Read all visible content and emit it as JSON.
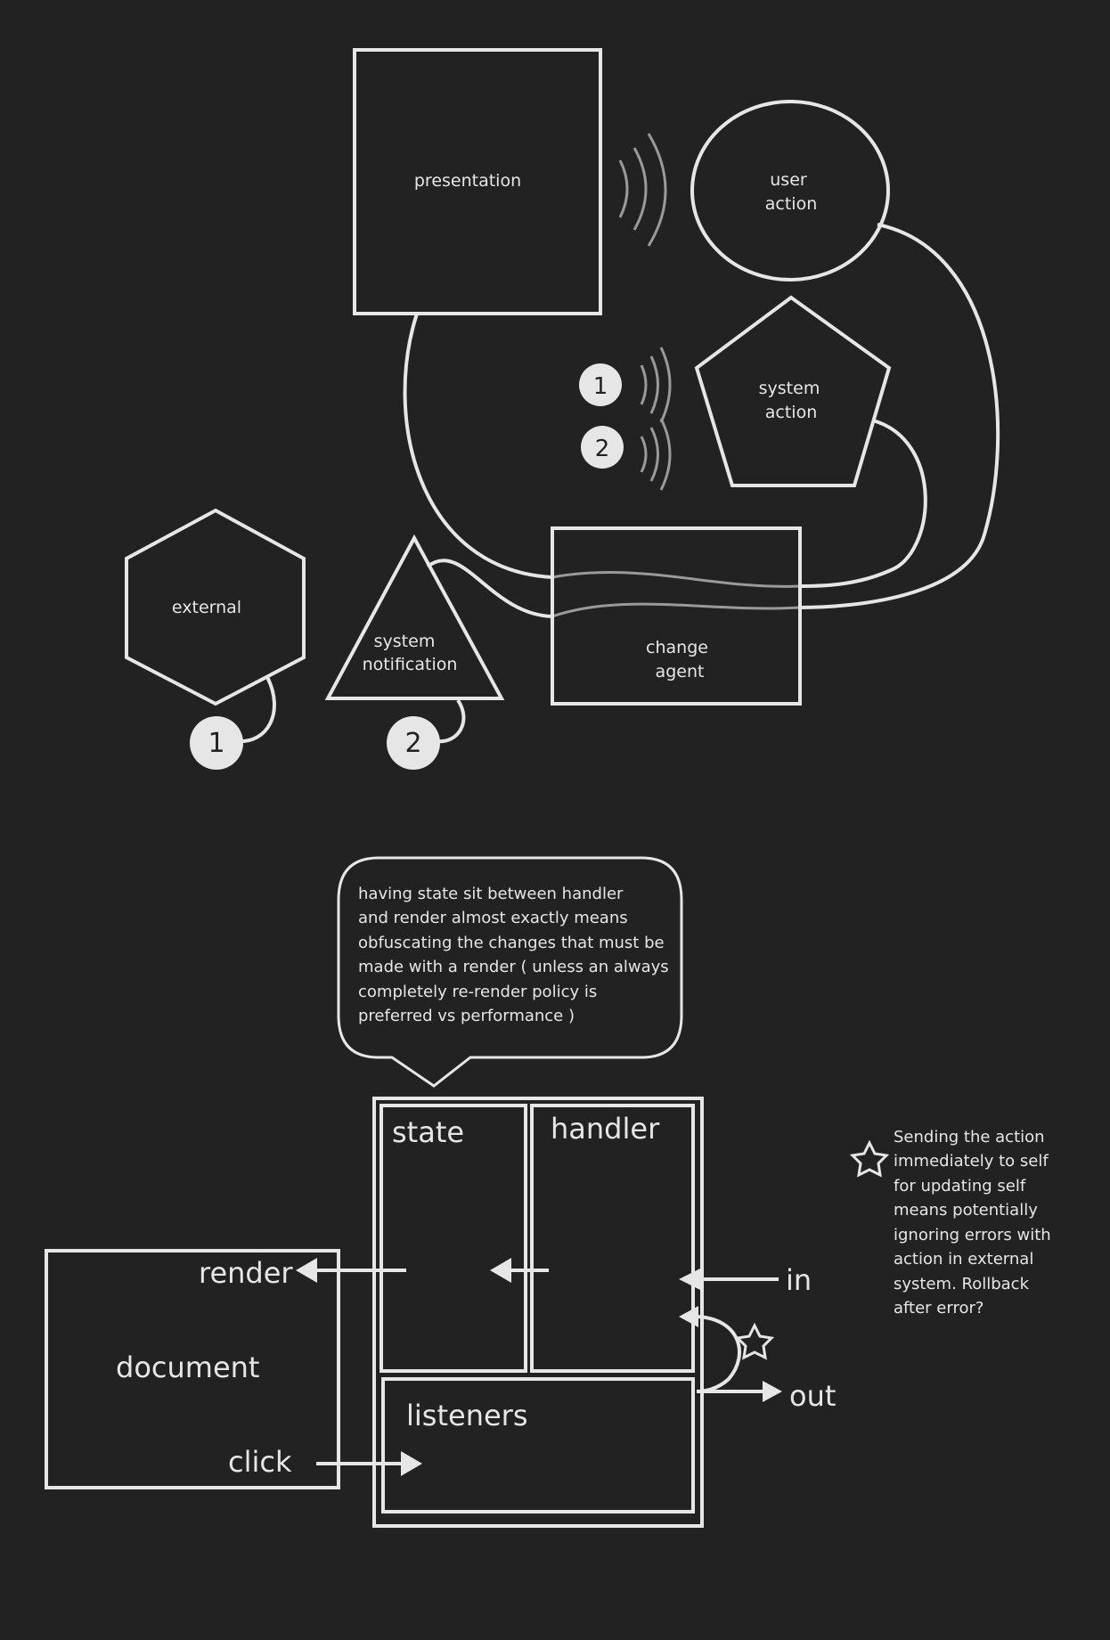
{
  "top": {
    "presentation": "presentation",
    "user_action_line1": "user",
    "user_action_line2": "action",
    "system_action_line1": "system",
    "system_action_line2": "action",
    "badge_1": "1",
    "badge_2": "2",
    "external": "external",
    "system_notification_line1": "system",
    "system_notification_line2": "notification",
    "change_agent_line1": "change",
    "change_agent_line2": "agent"
  },
  "bottom": {
    "callout_lines": [
      "having state sit between handler",
      "and render almost exactly means",
      "obfuscating the changes that must be",
      "made with a render ( unless an always",
      "completely re-render policy is",
      "preferred vs performance )"
    ],
    "state": "state",
    "handler": "handler",
    "listeners": "listeners",
    "document": "document",
    "render": "render",
    "click": "click",
    "in": "in",
    "out": "out",
    "note_lines": [
      "Sending the action",
      "immediately to self",
      "for updating self",
      "means potentially",
      "ignoring errors with",
      "action in external",
      "system.  Rollback",
      "after error?"
    ]
  },
  "colors": {
    "background": "#222222",
    "stroke": "#e6e6e6",
    "wave": "#9a9a9a"
  }
}
